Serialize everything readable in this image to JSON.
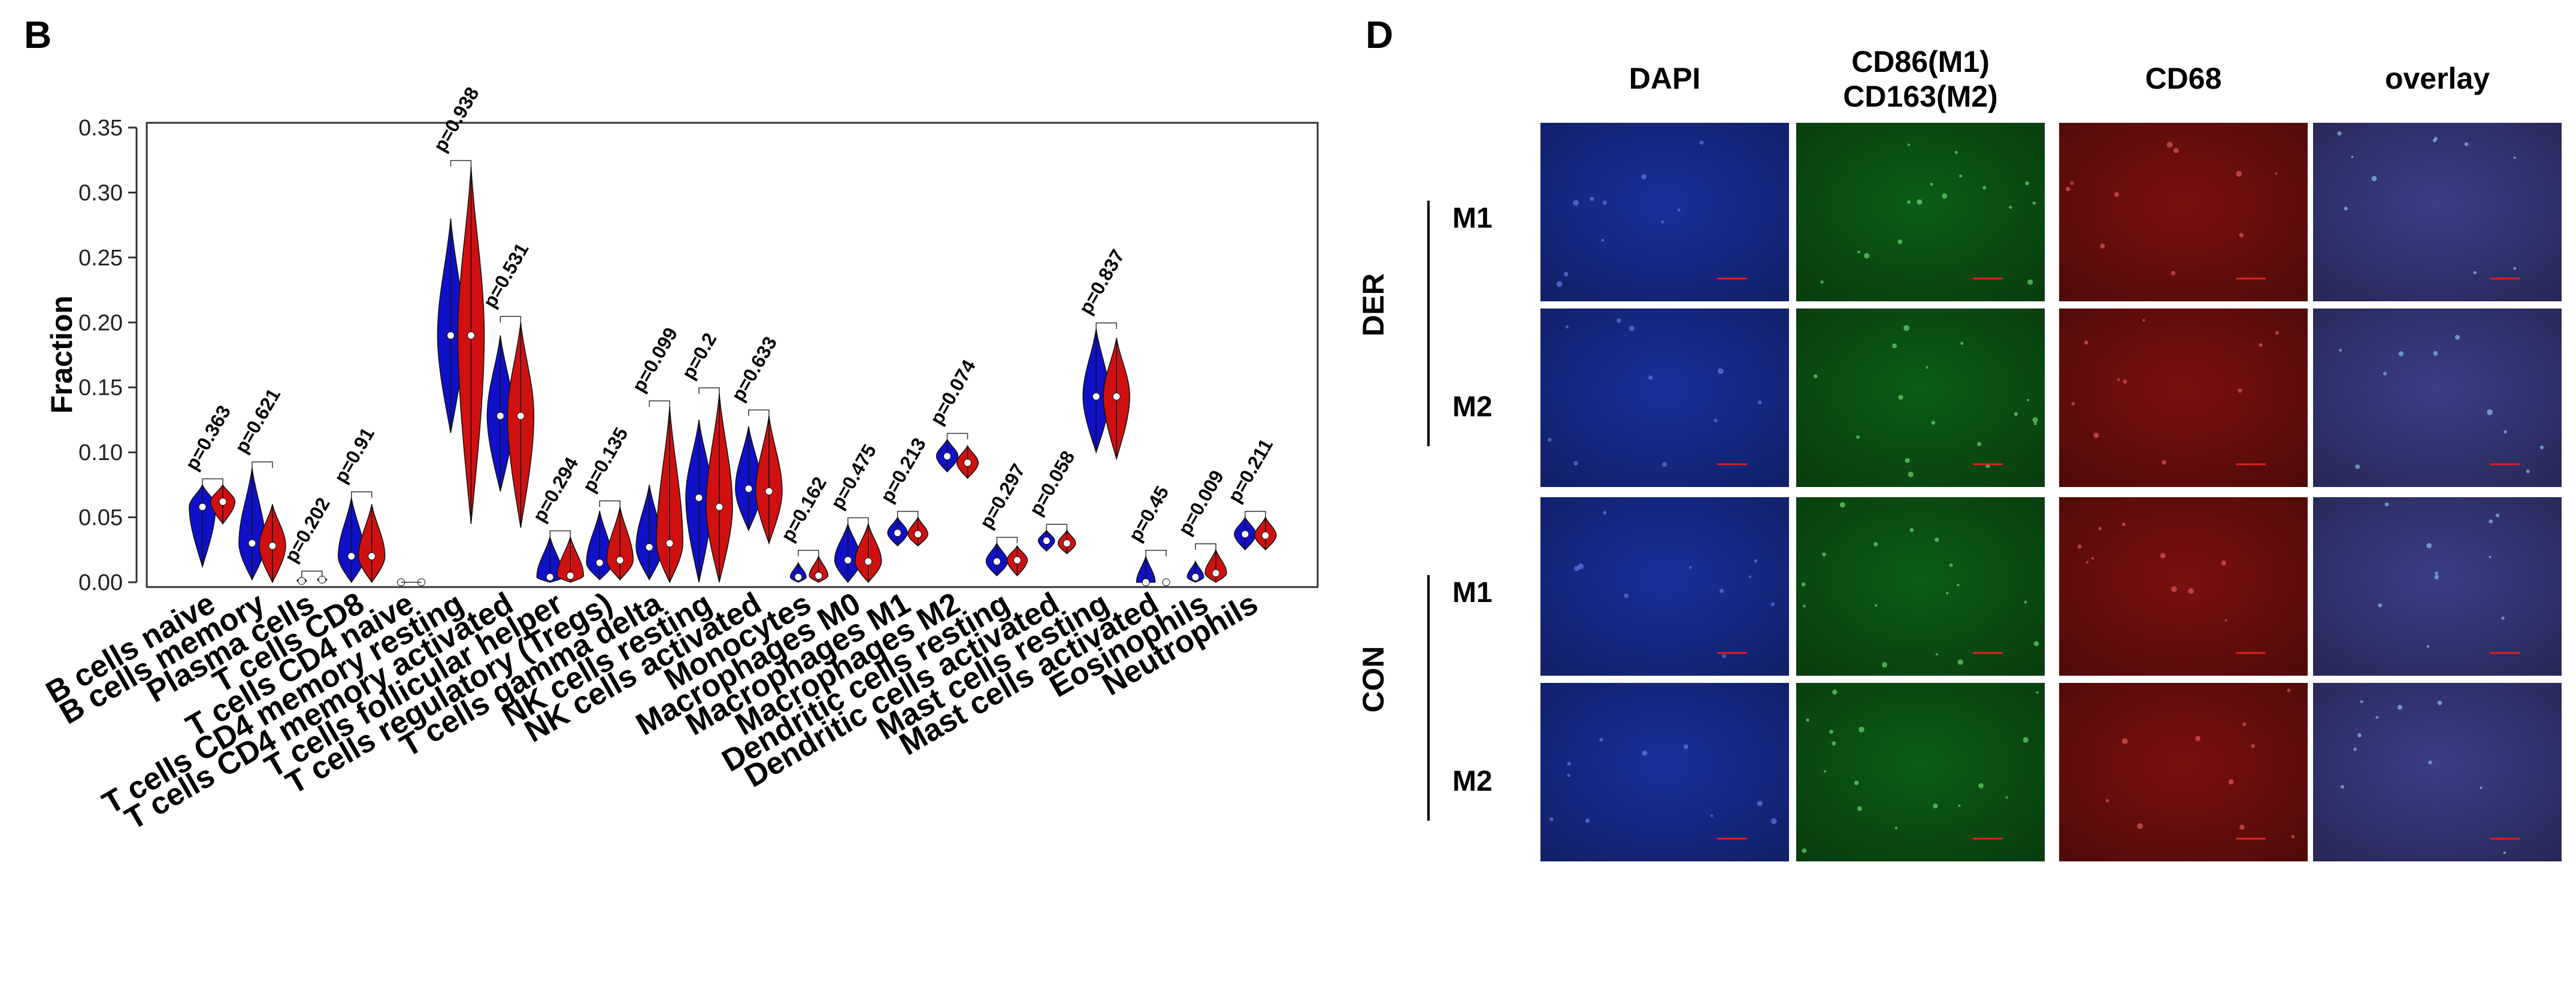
{
  "panels": {
    "left_label": "B",
    "right_label": "D"
  },
  "chart_data": {
    "type": "violin",
    "title": "",
    "xlabel": "",
    "ylabel": "Fraction",
    "ylim": [
      0,
      0.35
    ],
    "yticks": [
      "0.00",
      "0.05",
      "0.10",
      "0.15",
      "0.20",
      "0.25",
      "0.30",
      "0.35"
    ],
    "series_colors": [
      "#1010c8",
      "#d01010"
    ],
    "categories": [
      "B cells naive",
      "B cells memory",
      "Plasma cells",
      "T cells CD8",
      "T cells CD4 naive",
      "T cells CD4 memory resting",
      "T cells CD4 memory activated",
      "T cells follicular helper",
      "T cells regulatory (Tregs)",
      "T cells gamma delta",
      "NK cells resting",
      "NK cells activated",
      "Monocytes",
      "Macrophages M0",
      "Macrophages M1",
      "Macrophages M2",
      "Dendritic cells resting",
      "Dendritic cells activated",
      "Mast cells resting",
      "Mast cells activated",
      "Eosinophils",
      "Neutrophils"
    ],
    "pvalues": [
      "p=0.363",
      "p=0.621",
      "p=0.202",
      "p=0.91",
      "",
      "p=0.938",
      "p=0.531",
      "p=0.294",
      "p=0.135",
      "p=0.099",
      "p=0.2",
      "p=0.633",
      "p=0.162",
      "p=0.475",
      "p=0.213",
      "p=0.074",
      "p=0.297",
      "p=0.058",
      "p=0.837",
      "p=0.45",
      "p=0.009",
      "p=0.211"
    ],
    "group_a": {
      "median": [
        0.058,
        0.03,
        0.001,
        0.02,
        0.0,
        0.19,
        0.128,
        0.004,
        0.015,
        0.027,
        0.065,
        0.072,
        0.004,
        0.017,
        0.038,
        0.097,
        0.016,
        0.032,
        0.143,
        0.0,
        0.004,
        0.037
      ],
      "min": [
        0.012,
        0.002,
        0.0,
        0.0,
        0.0,
        0.115,
        0.07,
        0.0,
        0.002,
        0.002,
        0.0,
        0.04,
        0.0,
        0.0,
        0.028,
        0.085,
        0.005,
        0.024,
        0.1,
        0.0,
        0.0,
        0.025
      ],
      "max": [
        0.075,
        0.088,
        0.004,
        0.065,
        0.001,
        0.28,
        0.19,
        0.035,
        0.055,
        0.075,
        0.125,
        0.12,
        0.015,
        0.045,
        0.05,
        0.11,
        0.03,
        0.04,
        0.195,
        0.02,
        0.016,
        0.05
      ]
    },
    "group_b": {
      "median": [
        0.062,
        0.028,
        0.002,
        0.02,
        0.0,
        0.19,
        0.128,
        0.005,
        0.017,
        0.03,
        0.058,
        0.07,
        0.005,
        0.016,
        0.037,
        0.092,
        0.017,
        0.03,
        0.143,
        0.0,
        0.007,
        0.036
      ],
      "min": [
        0.045,
        0.0,
        0.0,
        0.0,
        0.0,
        0.045,
        0.042,
        0.0,
        0.002,
        0.0,
        0.0,
        0.03,
        0.0,
        0.0,
        0.028,
        0.08,
        0.005,
        0.022,
        0.095,
        0.0,
        0.0,
        0.025
      ],
      "max": [
        0.075,
        0.06,
        0.004,
        0.06,
        0.0,
        0.32,
        0.2,
        0.035,
        0.058,
        0.135,
        0.145,
        0.128,
        0.02,
        0.045,
        0.05,
        0.105,
        0.028,
        0.04,
        0.188,
        0.0,
        0.025,
        0.05
      ]
    }
  },
  "microscopy": {
    "columns": [
      "DAPI",
      "CD86(M1)\nCD163(M2)",
      "CD68",
      "overlay"
    ],
    "column_colors": [
      "#1a2f9c",
      "#0d5c16",
      "#7a1010",
      "#3b3e86"
    ],
    "groups": [
      {
        "label": "DER",
        "rows": [
          "M1",
          "M2"
        ]
      },
      {
        "label": "CON",
        "rows": [
          "M1",
          "M2"
        ]
      }
    ]
  }
}
